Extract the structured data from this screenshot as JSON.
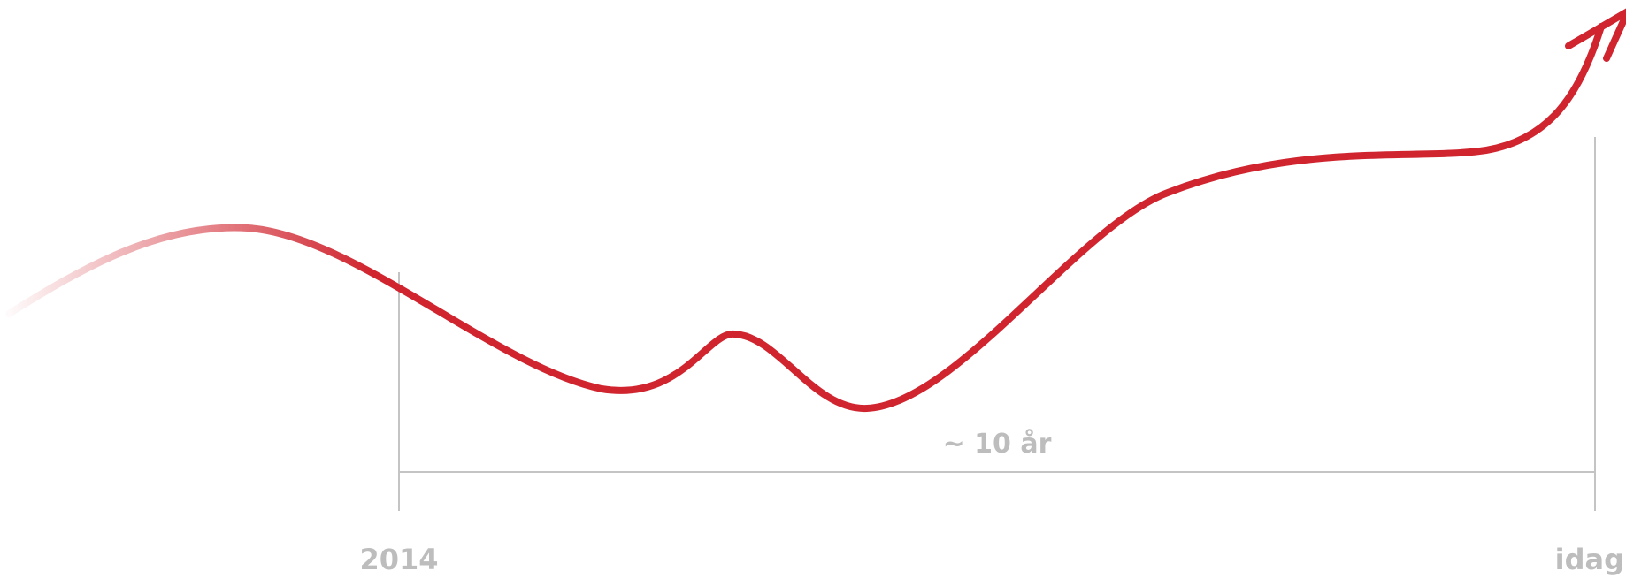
{
  "timeline": {
    "start_label": "2014",
    "end_label": "idag",
    "span_label": "~ 10 år"
  },
  "colors": {
    "trend_line": "#d0252f",
    "guide_lines": "#c4c4c4",
    "label_text": "#bdbdbd",
    "background": "#ffffff"
  },
  "icons": {
    "arrowhead": "arrow-up-right-icon"
  }
}
